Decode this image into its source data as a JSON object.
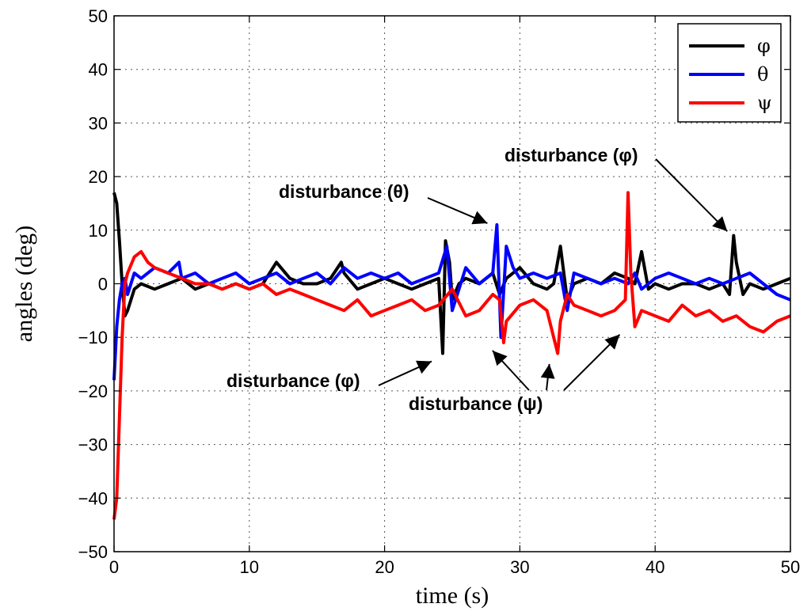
{
  "chart_data": {
    "type": "line",
    "title": "",
    "xlabel": "time (s)",
    "ylabel": "angles (deg)",
    "xlim": [
      0,
      50
    ],
    "ylim": [
      -50,
      50
    ],
    "xticks": [
      0,
      10,
      20,
      30,
      40,
      50
    ],
    "yticks": [
      50,
      40,
      30,
      20,
      10,
      0,
      -10,
      -20,
      -30,
      -40,
      -50
    ],
    "grid": true,
    "legend_position": "top-right",
    "series": [
      {
        "name": "φ",
        "color": "#000000",
        "x": [
          0,
          0.2,
          0.4,
          0.6,
          0.8,
          1,
          1.5,
          2,
          3,
          4,
          5,
          6,
          7,
          8,
          9,
          10,
          11,
          12,
          13,
          14,
          15,
          16,
          16.8,
          17,
          18,
          19,
          20,
          21,
          22,
          23,
          24,
          24.3,
          24.5,
          24.8,
          25,
          25.5,
          26,
          27,
          28,
          28.5,
          29,
          30,
          31,
          32,
          32.5,
          33,
          33.5,
          34,
          35,
          36,
          37,
          38,
          38.5,
          39,
          39.5,
          40,
          41,
          42,
          43,
          44,
          45,
          45.5,
          45.8,
          46,
          46.5,
          47,
          48,
          49,
          50
        ],
        "y": [
          17,
          15,
          8,
          0,
          -6,
          -5,
          -1,
          0,
          -1,
          0,
          1,
          -1,
          0,
          -1,
          0,
          -1,
          0,
          4,
          1,
          0,
          0,
          1,
          4,
          2,
          -1,
          0,
          1,
          0,
          -1,
          0,
          1,
          -13,
          8,
          4,
          -3,
          0,
          1,
          0,
          2,
          -2,
          1,
          3,
          0,
          -1,
          0,
          7,
          -3,
          0,
          1,
          0,
          2,
          1,
          0,
          6,
          -1,
          0,
          -1,
          0,
          0,
          -1,
          0,
          -2,
          9,
          4,
          -2,
          0,
          -1,
          0,
          1
        ]
      },
      {
        "name": "θ",
        "color": "#0000ff",
        "x": [
          0,
          0.2,
          0.4,
          0.6,
          0.8,
          1,
          1.5,
          2,
          3,
          4,
          4.8,
          5,
          6,
          7,
          8,
          9,
          10,
          11,
          12,
          13,
          14,
          15,
          16,
          17,
          18,
          19,
          20,
          21,
          22,
          23,
          24,
          24.6,
          25,
          26,
          27,
          28,
          28.3,
          28.6,
          29,
          29.5,
          30,
          31,
          32,
          33,
          33.5,
          34,
          35,
          36,
          37,
          38,
          38.5,
          39,
          40,
          41,
          42,
          43,
          44,
          45,
          46,
          47,
          48,
          49,
          50
        ],
        "y": [
          -18,
          -8,
          -3,
          0,
          1,
          -2,
          2,
          1,
          3,
          2,
          4,
          1,
          2,
          0,
          1,
          2,
          0,
          1,
          2,
          0,
          1,
          2,
          0,
          3,
          1,
          2,
          1,
          2,
          0,
          1,
          2,
          7,
          -5,
          3,
          0,
          2,
          11,
          -10,
          7,
          3,
          1,
          2,
          1,
          2,
          -5,
          2,
          1,
          0,
          1,
          0,
          2,
          -1,
          1,
          2,
          1,
          0,
          1,
          0,
          1,
          2,
          0,
          -2,
          -3
        ]
      },
      {
        "name": "ψ",
        "color": "#ff0000",
        "x": [
          0,
          0.2,
          0.4,
          0.6,
          0.8,
          1,
          1.5,
          2,
          2.5,
          3,
          4,
          5,
          6,
          7,
          8,
          9,
          10,
          11,
          12,
          13,
          14,
          15,
          16,
          17,
          18,
          19,
          20,
          21,
          22,
          23,
          24,
          25,
          26,
          27,
          28,
          28.5,
          28.8,
          29,
          30,
          31,
          32,
          32.8,
          33,
          33.5,
          34,
          35,
          36,
          37,
          37.8,
          38,
          38.2,
          38.5,
          39,
          40,
          41,
          42,
          43,
          44,
          45,
          46,
          47,
          48,
          49,
          50
        ],
        "y": [
          -44,
          -40,
          -25,
          -10,
          0,
          2,
          5,
          6,
          4,
          3,
          2,
          1,
          0,
          0,
          -1,
          0,
          -1,
          0,
          -2,
          -1,
          -2,
          -3,
          -4,
          -5,
          -3,
          -6,
          -5,
          -4,
          -3,
          -5,
          -4,
          -1,
          -6,
          -5,
          -2,
          -3,
          -11,
          -7,
          -4,
          -3,
          -5,
          -13,
          -7,
          -2,
          -4,
          -5,
          -6,
          -5,
          -3,
          17,
          2,
          -8,
          -5,
          -6,
          -7,
          -4,
          -6,
          -5,
          -7,
          -6,
          -8,
          -9,
          -7,
          -6
        ]
      }
    ],
    "annotations": [
      {
        "text": "disturbance (θ)",
        "x": 28.3,
        "y": 11
      },
      {
        "text": "disturbance (φ)",
        "x": 45.8,
        "y": 9.5
      },
      {
        "text": "disturbance (φ)",
        "x": 24.3,
        "y": -13
      },
      {
        "text": "disturbance (ψ)",
        "x": 28.8,
        "y": -11
      },
      {
        "text": "disturbance (ψ)",
        "x": 33,
        "y": -13.5
      },
      {
        "text": "disturbance (ψ)",
        "x": 38.2,
        "y": -8
      }
    ]
  }
}
